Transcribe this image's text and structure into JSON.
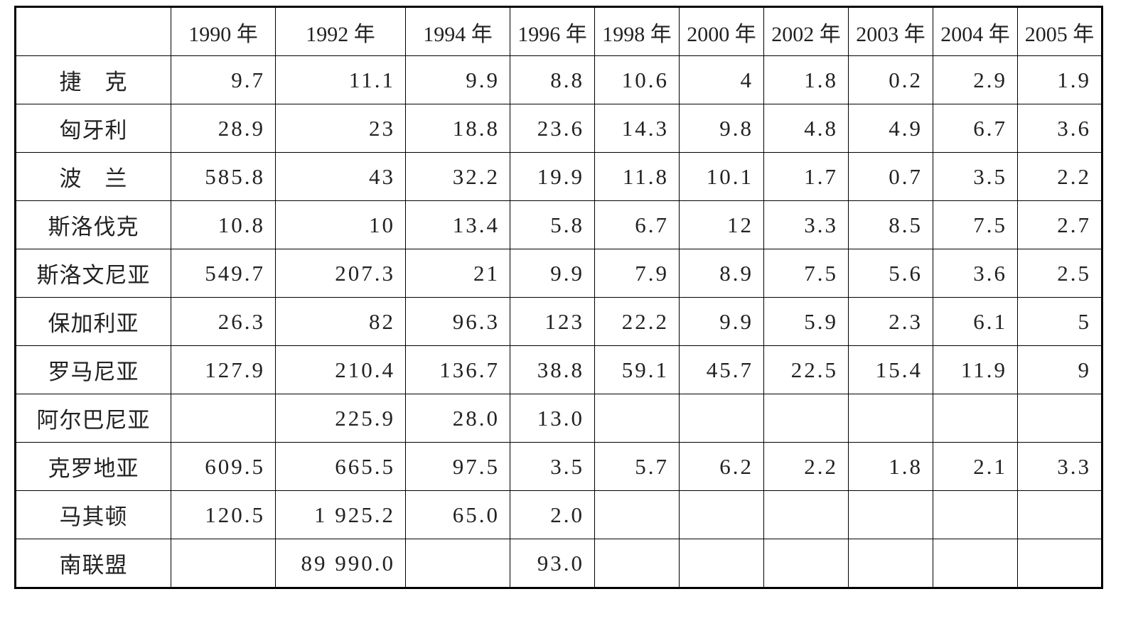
{
  "table": {
    "header": [
      null,
      "1990 年",
      "1992 年",
      "1994 年",
      "1996 年",
      "1998 年",
      "2000 年",
      "2002 年",
      "2003 年",
      "2004 年",
      "2005 年"
    ],
    "rows": [
      [
        "捷　克",
        "9.7",
        "11.1",
        "9.9",
        "8.8",
        "10.6",
        "4",
        "1.8",
        "0.2",
        "2.9",
        "1.9"
      ],
      [
        "匈牙利",
        "28.9",
        "23",
        "18.8",
        "23.6",
        "14.3",
        "9.8",
        "4.8",
        "4.9",
        "6.7",
        "3.6"
      ],
      [
        "波　兰",
        "585.8",
        "43",
        "32.2",
        "19.9",
        "11.8",
        "10.1",
        "1.7",
        "0.7",
        "3.5",
        "2.2"
      ],
      [
        "斯洛伐克",
        "10.8",
        "10",
        "13.4",
        "5.8",
        "6.7",
        "12",
        "3.3",
        "8.5",
        "7.5",
        "2.7"
      ],
      [
        "斯洛文尼亚",
        "549.7",
        "207.3",
        "21",
        "9.9",
        "7.9",
        "8.9",
        "7.5",
        "5.6",
        "3.6",
        "2.5"
      ],
      [
        "保加利亚",
        "26.3",
        "82",
        "96.3",
        "123",
        "22.2",
        "9.9",
        "5.9",
        "2.3",
        "6.1",
        "5"
      ],
      [
        "罗马尼亚",
        "127.9",
        "210.4",
        "136.7",
        "38.8",
        "59.1",
        "45.7",
        "22.5",
        "15.4",
        "11.9",
        "9"
      ],
      [
        "阿尔巴尼亚",
        null,
        "225.9",
        "28.0",
        "13.0",
        null,
        null,
        null,
        null,
        null,
        null
      ],
      [
        "克罗地亚",
        "609.5",
        "665.5",
        "97.5",
        "3.5",
        "5.7",
        "6.2",
        "2.2",
        "1.8",
        "2.1",
        "3.3"
      ],
      [
        "马其顿",
        "120.5",
        "1 925.2",
        "65.0",
        "2.0",
        null,
        null,
        null,
        null,
        null,
        null
      ],
      [
        "南联盟",
        null,
        "89 990.0",
        null,
        "93.0",
        null,
        null,
        null,
        null,
        null,
        null
      ]
    ]
  }
}
